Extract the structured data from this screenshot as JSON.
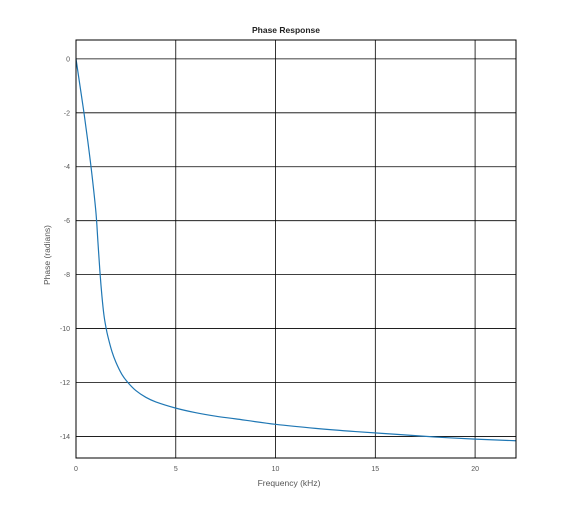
{
  "chart_data": {
    "type": "line",
    "title": "Phase Response",
    "xlabel": "Frequency (kHz)",
    "ylabel": "Phase (radians)",
    "xlim": [
      0,
      22.05
    ],
    "ylim": [
      -14.8,
      0.7
    ],
    "x_ticks": [
      0,
      5,
      10,
      15,
      20
    ],
    "x_tick_labels": [
      "0",
      "5",
      "10",
      "15",
      "20"
    ],
    "y_ticks": [
      0,
      -2,
      -4,
      -6,
      -8,
      -10,
      -12,
      -14
    ],
    "y_tick_labels": [
      "0",
      "-2",
      "-4",
      "-6",
      "-8",
      "-10",
      "-12",
      "-14"
    ],
    "grid": true,
    "line_color": "#1f77b4",
    "grid_color": "#000000",
    "series": [
      {
        "x": [
          0,
          0.2,
          0.4,
          0.6,
          0.8,
          1.0,
          1.1,
          1.2,
          1.3,
          1.4,
          1.5,
          1.6,
          1.8,
          2.0,
          2.3,
          2.6,
          3.0,
          3.5,
          4.0,
          5.0,
          6.0,
          7.0,
          8.0,
          10.0,
          12.0,
          14.0,
          16.0,
          18.0,
          20.0,
          22.05
        ],
        "y": [
          0,
          -1.0,
          -2.0,
          -3.1,
          -4.3,
          -5.7,
          -6.8,
          -7.9,
          -8.8,
          -9.5,
          -9.95,
          -10.3,
          -10.85,
          -11.25,
          -11.7,
          -12.0,
          -12.3,
          -12.55,
          -12.72,
          -12.95,
          -13.12,
          -13.25,
          -13.35,
          -13.55,
          -13.7,
          -13.82,
          -13.92,
          -14.02,
          -14.1,
          -14.16
        ]
      }
    ]
  }
}
